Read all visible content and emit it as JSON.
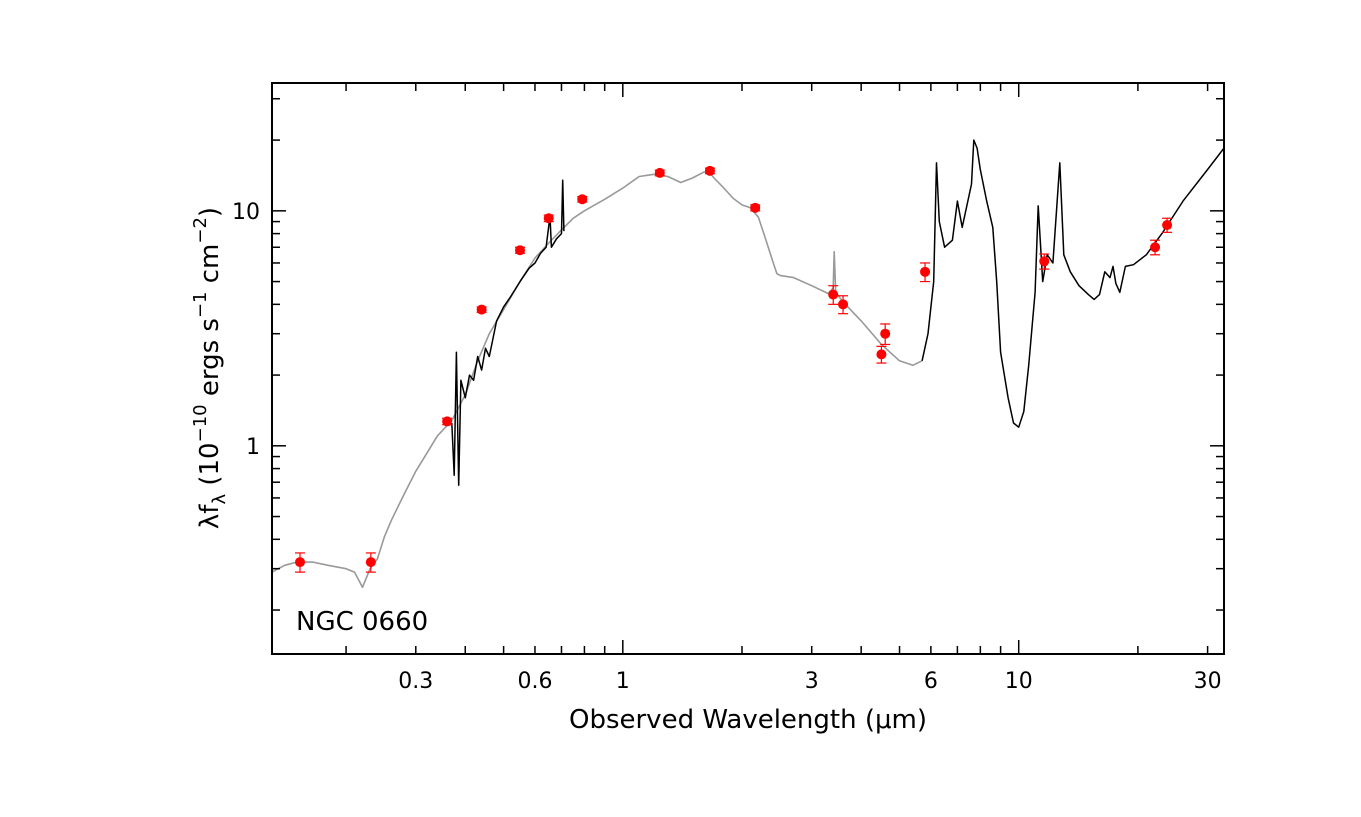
{
  "chart_data": {
    "type": "line",
    "title": "",
    "annotation": "NGC 0660",
    "xlabel": "Observed Wavelength (μm)",
    "ylabel_parts": {
      "lambda": "λ",
      "f": "f",
      "f_sub": "λ",
      "open": " (10",
      "exp1": "−10",
      "mid": " ergs s",
      "exp2": "−1",
      "mid2": " cm",
      "exp3": "−2",
      "close": ")"
    },
    "x_scale": "log",
    "y_scale": "log",
    "xlim": [
      0.13,
      33
    ],
    "ylim": [
      0.13,
      35
    ],
    "xticks": [
      {
        "value": 0.3,
        "label": "0.3"
      },
      {
        "value": 0.6,
        "label": "0.6"
      },
      {
        "value": 1,
        "label": "1"
      },
      {
        "value": 3,
        "label": "3"
      },
      {
        "value": 6,
        "label": "6"
      },
      {
        "value": 10,
        "label": "10"
      },
      {
        "value": 30,
        "label": "30"
      }
    ],
    "yticks": [
      {
        "value": 1,
        "label": "1"
      },
      {
        "value": 10,
        "label": "10"
      }
    ],
    "colors": {
      "model": "#999999",
      "spectrum": "#000000",
      "points": "#ff0000",
      "axes": "#000000"
    },
    "series": [
      {
        "kind": "model",
        "points": [
          [
            0.13,
            0.29
          ],
          [
            0.14,
            0.31
          ],
          [
            0.15,
            0.32
          ],
          [
            0.165,
            0.32
          ],
          [
            0.18,
            0.31
          ],
          [
            0.2,
            0.3
          ],
          [
            0.21,
            0.29
          ],
          [
            0.22,
            0.25
          ],
          [
            0.23,
            0.3
          ],
          [
            0.24,
            0.33
          ],
          [
            0.25,
            0.41
          ],
          [
            0.26,
            0.48
          ],
          [
            0.28,
            0.62
          ],
          [
            0.3,
            0.78
          ],
          [
            0.32,
            0.93
          ],
          [
            0.34,
            1.1
          ],
          [
            0.36,
            1.22
          ],
          [
            0.37,
            1.28
          ],
          [
            0.4,
            1.65
          ],
          [
            0.43,
            2.3
          ],
          [
            0.46,
            3.0
          ],
          [
            0.5,
            3.8
          ],
          [
            0.55,
            5.0
          ],
          [
            0.6,
            6.3
          ],
          [
            0.65,
            7.3
          ],
          [
            0.7,
            8.3
          ],
          [
            0.75,
            9.3
          ],
          [
            0.8,
            10.0
          ],
          [
            0.9,
            11.2
          ],
          [
            1.0,
            12.5
          ],
          [
            1.1,
            14.0
          ],
          [
            1.2,
            14.3
          ],
          [
            1.3,
            14.0
          ],
          [
            1.4,
            13.2
          ],
          [
            1.5,
            13.8
          ],
          [
            1.6,
            14.6
          ],
          [
            1.65,
            14.7
          ],
          [
            1.7,
            13.8
          ],
          [
            1.8,
            12.5
          ],
          [
            1.9,
            11.3
          ],
          [
            2.0,
            10.6
          ],
          [
            2.1,
            10.3
          ],
          [
            2.2,
            9.4
          ],
          [
            2.3,
            7.5
          ],
          [
            2.4,
            6.0
          ],
          [
            2.45,
            5.4
          ],
          [
            2.5,
            5.3
          ],
          [
            2.7,
            5.2
          ],
          [
            3.0,
            4.8
          ],
          [
            3.3,
            4.45
          ],
          [
            3.4,
            4.7
          ],
          [
            3.42,
            6.7
          ],
          [
            3.45,
            4.5
          ],
          [
            3.6,
            4.1
          ],
          [
            4.0,
            3.4
          ],
          [
            4.5,
            2.7
          ],
          [
            5.0,
            2.3
          ],
          [
            5.4,
            2.2
          ],
          [
            5.7,
            2.3
          ]
        ]
      },
      {
        "kind": "spectrum",
        "points": [
          [
            0.37,
            1.25
          ],
          [
            0.375,
            0.75
          ],
          [
            0.38,
            2.5
          ],
          [
            0.385,
            0.68
          ],
          [
            0.39,
            1.9
          ],
          [
            0.4,
            1.6
          ],
          [
            0.41,
            2.0
          ],
          [
            0.42,
            1.9
          ],
          [
            0.43,
            2.4
          ],
          [
            0.44,
            2.1
          ],
          [
            0.45,
            2.6
          ],
          [
            0.46,
            2.4
          ],
          [
            0.48,
            3.4
          ],
          [
            0.5,
            3.9
          ],
          [
            0.52,
            4.3
          ],
          [
            0.55,
            5.0
          ],
          [
            0.58,
            5.7
          ],
          [
            0.6,
            6.0
          ],
          [
            0.62,
            6.6
          ],
          [
            0.64,
            7.0
          ],
          [
            0.655,
            9.5
          ],
          [
            0.66,
            7.0
          ],
          [
            0.68,
            7.6
          ],
          [
            0.7,
            8.0
          ],
          [
            0.705,
            13.5
          ],
          [
            0.71,
            8.2
          ]
        ]
      },
      {
        "kind": "spectrum",
        "points": [
          [
            5.7,
            2.3
          ],
          [
            5.9,
            3.0
          ],
          [
            6.1,
            5.0
          ],
          [
            6.2,
            16.0
          ],
          [
            6.3,
            9.0
          ],
          [
            6.5,
            7.0
          ],
          [
            6.8,
            7.5
          ],
          [
            7.0,
            11.0
          ],
          [
            7.2,
            8.5
          ],
          [
            7.6,
            13.0
          ],
          [
            7.7,
            20.0
          ],
          [
            7.85,
            18.5
          ],
          [
            8.0,
            15.0
          ],
          [
            8.3,
            11.0
          ],
          [
            8.6,
            8.5
          ],
          [
            8.8,
            5.0
          ],
          [
            9.0,
            2.5
          ],
          [
            9.4,
            1.6
          ],
          [
            9.7,
            1.25
          ],
          [
            10.0,
            1.2
          ],
          [
            10.3,
            1.4
          ],
          [
            10.6,
            2.2
          ],
          [
            11.0,
            4.5
          ],
          [
            11.2,
            10.5
          ],
          [
            11.5,
            5.0
          ],
          [
            11.8,
            6.5
          ],
          [
            12.2,
            6.0
          ],
          [
            12.7,
            16.0
          ],
          [
            13.0,
            6.5
          ],
          [
            13.5,
            5.5
          ],
          [
            14.2,
            4.8
          ],
          [
            15.0,
            4.4
          ],
          [
            15.5,
            4.2
          ],
          [
            16.0,
            4.4
          ],
          [
            16.5,
            5.5
          ],
          [
            17.0,
            5.2
          ],
          [
            17.3,
            5.8
          ],
          [
            17.6,
            4.9
          ],
          [
            18.0,
            4.5
          ],
          [
            18.6,
            5.8
          ],
          [
            19.5,
            5.9
          ],
          [
            21.0,
            6.5
          ],
          [
            23.0,
            8.0
          ],
          [
            26.0,
            11.0
          ],
          [
            30.0,
            15.0
          ],
          [
            33.0,
            18.5
          ]
        ]
      }
    ],
    "photometry": [
      {
        "x": 0.153,
        "y": 0.32,
        "err": 0.03
      },
      {
        "x": 0.231,
        "y": 0.32,
        "err": 0.03
      },
      {
        "x": 0.36,
        "y": 1.27,
        "err": 0.04
      },
      {
        "x": 0.44,
        "y": 3.8,
        "err": 0.1
      },
      {
        "x": 0.55,
        "y": 6.8,
        "err": 0.2
      },
      {
        "x": 0.65,
        "y": 9.3,
        "err": 0.3
      },
      {
        "x": 0.79,
        "y": 11.2,
        "err": 0.3
      },
      {
        "x": 1.24,
        "y": 14.5,
        "err": 0.4
      },
      {
        "x": 1.66,
        "y": 14.8,
        "err": 0.4
      },
      {
        "x": 2.16,
        "y": 10.3,
        "err": 0.3
      },
      {
        "x": 3.4,
        "y": 4.4,
        "err": 0.4
      },
      {
        "x": 3.6,
        "y": 4.0,
        "err": 0.35
      },
      {
        "x": 4.5,
        "y": 2.45,
        "err": 0.2
      },
      {
        "x": 4.6,
        "y": 3.0,
        "err": 0.3
      },
      {
        "x": 5.8,
        "y": 5.5,
        "err": 0.5
      },
      {
        "x": 11.6,
        "y": 6.1,
        "err": 0.45
      },
      {
        "x": 22.1,
        "y": 7.0,
        "err": 0.5
      },
      {
        "x": 23.7,
        "y": 8.7,
        "err": 0.6
      }
    ]
  }
}
